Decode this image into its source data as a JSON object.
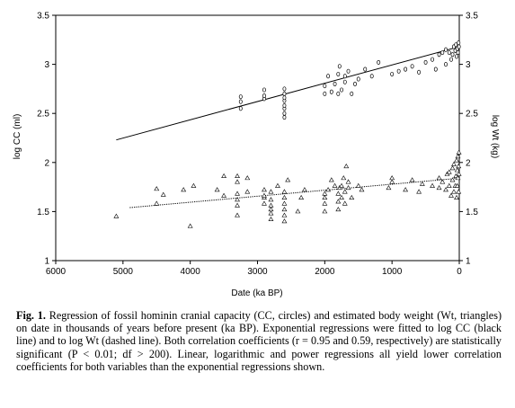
{
  "chart_data": {
    "type": "scatter",
    "title": "",
    "xlabel": "Date (ka BP)",
    "ylabel_left": "log CC (ml)",
    "ylabel_right": "log Wt (kg)",
    "xlim": [
      6000,
      0
    ],
    "ylim": [
      1,
      3.5
    ],
    "x_ticks": [
      "6000",
      "5000",
      "4000",
      "3000",
      "2000",
      "1000",
      "0"
    ],
    "y_ticks": [
      "1",
      "1.5",
      "2",
      "2.5",
      "3",
      "3.5"
    ],
    "grid": false,
    "series": [
      {
        "name": "CC",
        "marker": "circle",
        "points": [
          [
            3250,
            2.55
          ],
          [
            3250,
            2.62
          ],
          [
            3250,
            2.67
          ],
          [
            2900,
            2.65
          ],
          [
            2900,
            2.68
          ],
          [
            2900,
            2.74
          ],
          [
            2600,
            2.46
          ],
          [
            2600,
            2.5
          ],
          [
            2600,
            2.55
          ],
          [
            2600,
            2.58
          ],
          [
            2600,
            2.63
          ],
          [
            2600,
            2.66
          ],
          [
            2600,
            2.7
          ],
          [
            2600,
            2.75
          ],
          [
            2000,
            2.7
          ],
          [
            2000,
            2.78
          ],
          [
            1950,
            2.88
          ],
          [
            1900,
            2.72
          ],
          [
            1850,
            2.8
          ],
          [
            1800,
            2.7
          ],
          [
            1800,
            2.9
          ],
          [
            1780,
            2.98
          ],
          [
            1750,
            2.74
          ],
          [
            1700,
            2.82
          ],
          [
            1700,
            2.88
          ],
          [
            1650,
            2.93
          ],
          [
            1600,
            2.7
          ],
          [
            1550,
            2.8
          ],
          [
            1500,
            2.85
          ],
          [
            1400,
            2.95
          ],
          [
            1300,
            2.88
          ],
          [
            1200,
            3.02
          ],
          [
            1000,
            2.9
          ],
          [
            900,
            2.93
          ],
          [
            800,
            2.95
          ],
          [
            700,
            2.98
          ],
          [
            600,
            2.92
          ],
          [
            500,
            3.02
          ],
          [
            400,
            3.05
          ],
          [
            350,
            2.95
          ],
          [
            300,
            3.1
          ],
          [
            250,
            3.12
          ],
          [
            200,
            3.0
          ],
          [
            200,
            3.15
          ],
          [
            150,
            3.12
          ],
          [
            120,
            3.05
          ],
          [
            100,
            3.1
          ],
          [
            80,
            3.18
          ],
          [
            60,
            3.14
          ],
          [
            50,
            3.2
          ],
          [
            40,
            3.08
          ],
          [
            30,
            3.16
          ],
          [
            20,
            3.12
          ],
          [
            10,
            3.22
          ],
          [
            5,
            3.18
          ]
        ]
      },
      {
        "name": "Wt",
        "marker": "triangle",
        "points": [
          [
            5100,
            1.45
          ],
          [
            4500,
            1.58
          ],
          [
            4500,
            1.73
          ],
          [
            4400,
            1.67
          ],
          [
            4100,
            1.72
          ],
          [
            4000,
            1.35
          ],
          [
            3950,
            1.76
          ],
          [
            3600,
            1.72
          ],
          [
            3500,
            1.66
          ],
          [
            3500,
            1.86
          ],
          [
            3300,
            1.46
          ],
          [
            3300,
            1.56
          ],
          [
            3300,
            1.62
          ],
          [
            3300,
            1.68
          ],
          [
            3300,
            1.8
          ],
          [
            3300,
            1.86
          ],
          [
            3150,
            1.7
          ],
          [
            3150,
            1.84
          ],
          [
            2900,
            1.58
          ],
          [
            2900,
            1.64
          ],
          [
            2900,
            1.66
          ],
          [
            2900,
            1.72
          ],
          [
            2800,
            1.42
          ],
          [
            2800,
            1.48
          ],
          [
            2800,
            1.52
          ],
          [
            2800,
            1.56
          ],
          [
            2800,
            1.62
          ],
          [
            2800,
            1.7
          ],
          [
            2700,
            1.76
          ],
          [
            2600,
            1.4
          ],
          [
            2600,
            1.46
          ],
          [
            2600,
            1.52
          ],
          [
            2600,
            1.58
          ],
          [
            2600,
            1.64
          ],
          [
            2600,
            1.7
          ],
          [
            2550,
            1.82
          ],
          [
            2400,
            1.5
          ],
          [
            2350,
            1.64
          ],
          [
            2300,
            1.72
          ],
          [
            2000,
            1.5
          ],
          [
            2000,
            1.58
          ],
          [
            2000,
            1.64
          ],
          [
            2000,
            1.68
          ],
          [
            1950,
            1.72
          ],
          [
            1900,
            1.82
          ],
          [
            1850,
            1.76
          ],
          [
            1800,
            1.52
          ],
          [
            1800,
            1.6
          ],
          [
            1800,
            1.68
          ],
          [
            1780,
            1.74
          ],
          [
            1750,
            1.64
          ],
          [
            1750,
            1.76
          ],
          [
            1720,
            1.84
          ],
          [
            1700,
            1.58
          ],
          [
            1700,
            1.7
          ],
          [
            1680,
            1.96
          ],
          [
            1650,
            1.74
          ],
          [
            1650,
            1.8
          ],
          [
            1600,
            1.64
          ],
          [
            1500,
            1.76
          ],
          [
            1450,
            1.72
          ],
          [
            1050,
            1.74
          ],
          [
            1000,
            1.8
          ],
          [
            1000,
            1.84
          ],
          [
            800,
            1.72
          ],
          [
            700,
            1.82
          ],
          [
            600,
            1.7
          ],
          [
            550,
            1.78
          ],
          [
            400,
            1.76
          ],
          [
            300,
            1.74
          ],
          [
            300,
            1.84
          ],
          [
            250,
            1.8
          ],
          [
            200,
            1.72
          ],
          [
            180,
            1.88
          ],
          [
            150,
            1.76
          ],
          [
            150,
            1.9
          ],
          [
            120,
            1.66
          ],
          [
            100,
            1.82
          ],
          [
            100,
            1.94
          ],
          [
            80,
            1.7
          ],
          [
            80,
            1.98
          ],
          [
            60,
            1.76
          ],
          [
            50,
            1.86
          ],
          [
            40,
            1.64
          ],
          [
            40,
            2.02
          ],
          [
            30,
            1.76
          ],
          [
            30,
            1.92
          ],
          [
            20,
            1.84
          ],
          [
            20,
            2.06
          ],
          [
            10,
            1.7
          ],
          [
            10,
            1.96
          ],
          [
            5,
            1.88
          ],
          [
            5,
            2.1
          ]
        ]
      }
    ],
    "regressions": [
      {
        "series": "CC",
        "style": "solid",
        "x": [
          5100,
          0
        ],
        "y": [
          2.23,
          3.18
        ]
      },
      {
        "series": "Wt",
        "style": "dotted",
        "x": [
          4900,
          0
        ],
        "y": [
          1.54,
          1.84
        ]
      }
    ]
  },
  "caption": {
    "fig_label": "Fig. 1.",
    "text": "Regression of fossil hominin cranial capacity (CC, circles) and estimated body weight (Wt, triangles) on date in thousands of years before present (ka BP). Exponential regressions were fitted to log CC (black line) and to log Wt (dashed line). Both correlation coefficients (r = 0.95 and 0.59, respectively) are statistically significant (P < 0.01; df > 200). Linear, logarithmic and power regressions all yield lower correlation coefficients for both variables than the exponential regressions shown."
  }
}
